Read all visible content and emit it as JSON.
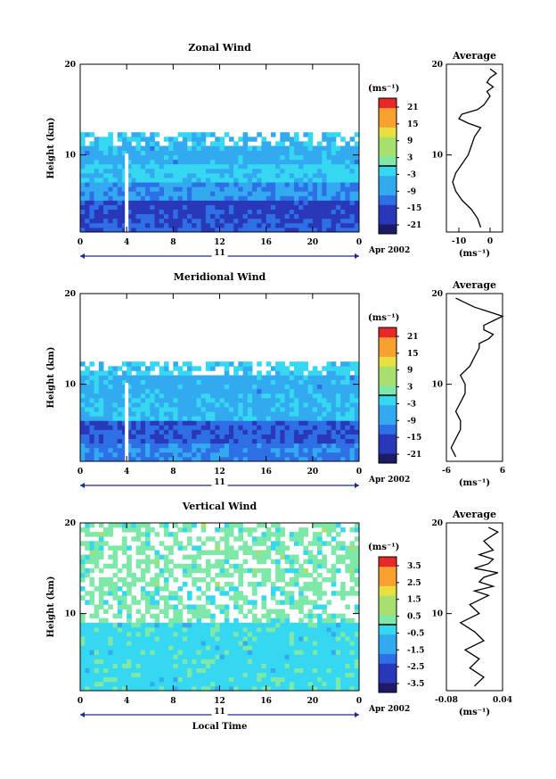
{
  "panels": [
    {
      "title": "Zonal Wind",
      "ylabel": "Height (km)",
      "unit": "(ms⁻¹)",
      "colorbar_ticks": [
        "21",
        "15",
        "9",
        "3",
        "-3",
        "-9",
        "-15",
        "-21"
      ],
      "avg_title": "Average",
      "avg_xticks": [
        "-10",
        "0"
      ],
      "avg_xunit": "(ms⁻¹)",
      "date_label": "Apr 2002",
      "day_label": "11"
    },
    {
      "title": "Meridional Wind",
      "ylabel": "Height (km)",
      "unit": "(ms⁻¹)",
      "colorbar_ticks": [
        "21",
        "15",
        "9",
        "3",
        "-3",
        "-9",
        "-15",
        "-21"
      ],
      "avg_title": "Average",
      "avg_xticks": [
        "-6",
        "6"
      ],
      "avg_xunit": "(ms⁻¹)",
      "date_label": "Apr 2002",
      "day_label": "11"
    },
    {
      "title": "Vertical Wind",
      "ylabel": "Height (km)",
      "unit": "(ms⁻¹)",
      "colorbar_ticks": [
        "3.5",
        "2.5",
        "1.5",
        "0.5",
        "-0.5",
        "-1.5",
        "-2.5",
        "-3.5"
      ],
      "avg_title": "Average",
      "avg_xticks": [
        "-0.08",
        "0.04"
      ],
      "avg_xunit": "(ms⁻¹)",
      "date_label": "Apr 2002",
      "day_label": "11",
      "xlabel": "Local Time"
    }
  ],
  "chart_data": [
    {
      "type": "heatmap",
      "title": "Zonal Wind",
      "xlabel": "",
      "ylabel": "Height (km)",
      "x_ticks": [
        "0",
        "4",
        "8",
        "12",
        "16",
        "20",
        "0"
      ],
      "y_ticks": [
        "10",
        "20"
      ],
      "xlim": [
        0,
        24
      ],
      "ylim": [
        1.5,
        20
      ],
      "colorbar": {
        "unit": "(ms⁻¹)",
        "range": [
          -21,
          21
        ],
        "ticks": [
          21,
          15,
          9,
          3,
          -3,
          -9,
          -15,
          -21
        ]
      },
      "layers": [
        {
          "h0": 1.5,
          "h1": 3.0,
          "value": -12
        },
        {
          "h0": 3.0,
          "h1": 5.0,
          "value": -14
        },
        {
          "h0": 5.0,
          "h1": 7.0,
          "value": -8
        },
        {
          "h0": 7.0,
          "h1": 9.0,
          "value": -3
        },
        {
          "h0": 9.0,
          "h1": 11.0,
          "value": -6
        },
        {
          "h0": 11.0,
          "h1": 12.5,
          "value": -4
        }
      ],
      "gap_hour": 4
    },
    {
      "type": "line",
      "title": "Average",
      "xlabel": "(ms⁻¹)",
      "xlim": [
        -14,
        4
      ],
      "ylim": [
        1.5,
        20
      ],
      "x_ticks": [
        "-10",
        "0"
      ],
      "series": [
        {
          "x": [
            -3,
            -4,
            -6,
            -9,
            -11,
            -12,
            -11,
            -9,
            -7,
            -6,
            -5,
            -4,
            -3,
            -7,
            -10,
            -9,
            -4,
            -2,
            -1,
            0,
            -1,
            1,
            -1,
            0,
            2,
            0
          ],
          "y": [
            2,
            3,
            4,
            5,
            6,
            7,
            8,
            9,
            10,
            11,
            12,
            12.5,
            13,
            13.5,
            14,
            14.5,
            15,
            15.5,
            16,
            16.5,
            17,
            17.5,
            18,
            18.5,
            19,
            19.5
          ]
        }
      ]
    },
    {
      "type": "heatmap",
      "title": "Meridional Wind",
      "xlabel": "",
      "ylabel": "Height (km)",
      "x_ticks": [
        "0",
        "4",
        "8",
        "12",
        "16",
        "20",
        "0"
      ],
      "y_ticks": [
        "10",
        "20"
      ],
      "xlim": [
        0,
        24
      ],
      "ylim": [
        1.5,
        20
      ],
      "colorbar": {
        "unit": "(ms⁻¹)",
        "range": [
          -21,
          21
        ],
        "ticks": [
          21,
          15,
          9,
          3,
          -3,
          -9,
          -15,
          -21
        ]
      },
      "layers": [
        {
          "h0": 1.5,
          "h1": 3.5,
          "value": -9
        },
        {
          "h0": 3.5,
          "h1": 6.0,
          "value": -12
        },
        {
          "h0": 6.0,
          "h1": 9.0,
          "value": -5
        },
        {
          "h0": 9.0,
          "h1": 11.0,
          "value": -6
        },
        {
          "h0": 11.0,
          "h1": 12.5,
          "value": -3
        }
      ],
      "gap_hour": 4
    },
    {
      "type": "line",
      "title": "Average",
      "xlabel": "(ms⁻¹)",
      "xlim": [
        -6,
        6
      ],
      "ylim": [
        1.5,
        20
      ],
      "x_ticks": [
        "-6",
        "6"
      ],
      "series": [
        {
          "x": [
            -4,
            -5,
            -4,
            -3,
            -3,
            -4,
            -3,
            -2,
            -2,
            -3,
            -1,
            0,
            1,
            1,
            3,
            4,
            2,
            2,
            4,
            6,
            3,
            0,
            -2,
            -4
          ],
          "y": [
            2,
            3,
            4,
            5,
            6,
            7,
            8,
            9,
            10,
            11,
            12,
            13,
            14,
            14.5,
            15,
            15.5,
            16,
            16.5,
            17,
            17.5,
            18,
            18.5,
            19,
            19.5
          ]
        }
      ]
    },
    {
      "type": "heatmap",
      "title": "Vertical Wind",
      "xlabel": "Local Time",
      "ylabel": "Height (km)",
      "x_ticks": [
        "0",
        "4",
        "8",
        "12",
        "16",
        "20",
        "0"
      ],
      "y_ticks": [
        "10",
        "20"
      ],
      "xlim": [
        0,
        24
      ],
      "ylim": [
        1.5,
        20
      ],
      "colorbar": {
        "unit": "(ms⁻¹)",
        "range": [
          -3.5,
          3.5
        ],
        "ticks": [
          3.5,
          2.5,
          1.5,
          0.5,
          -0.5,
          -1.5,
          -2.5,
          -3.5
        ]
      },
      "layers": [
        {
          "h0": 1.5,
          "h1": 9.0,
          "value": -0.3
        },
        {
          "h0": 9.0,
          "h1": 13.0,
          "value": 0.2
        },
        {
          "h0": 13.0,
          "h1": 20.0,
          "value": 0.3
        }
      ]
    },
    {
      "type": "line",
      "title": "Average",
      "xlabel": "(ms⁻¹)",
      "xlim": [
        -0.08,
        0.04
      ],
      "ylim": [
        1.5,
        20
      ],
      "x_ticks": [
        "-0.08",
        "0.04"
      ],
      "series": [
        {
          "x": [
            -0.02,
            0.0,
            -0.03,
            -0.01,
            -0.04,
            0.0,
            -0.02,
            -0.05,
            -0.01,
            -0.03,
            0.01,
            -0.02,
            0.02,
            -0.01,
            0.0,
            0.03,
            -0.02,
            0.01,
            0.02,
            -0.01,
            0.02,
            0.0,
            0.03,
            0.01
          ],
          "y": [
            2,
            3,
            4,
            5,
            6,
            7,
            8,
            9,
            10,
            11,
            12,
            12.5,
            13,
            13.5,
            14,
            14.5,
            15,
            15.5,
            16,
            16.5,
            17,
            18,
            19,
            19.5
          ]
        }
      ]
    }
  ]
}
